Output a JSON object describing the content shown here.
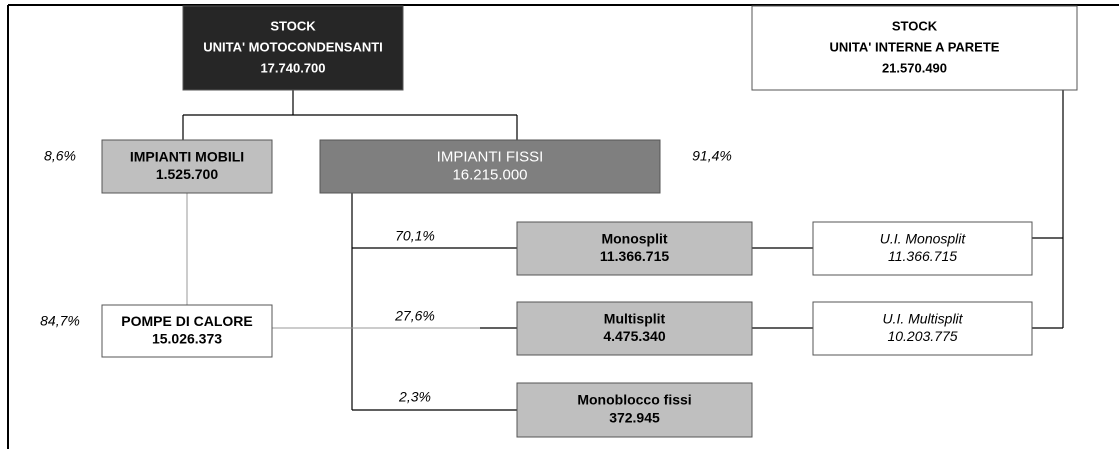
{
  "nodes": [
    {
      "lines": [
        "STOCK",
        "UNITA' MOTOCONDENSANTI",
        "17.740.700"
      ]
    },
    {
      "lines": [
        "STOCK",
        "UNITA' INTERNE A PARETE",
        "21.570.490"
      ]
    },
    {
      "lines": [
        "IMPIANTI MOBILI",
        "1.525.700"
      ]
    },
    {
      "lines": [
        "IMPIANTI FISSI",
        "16.215.000"
      ]
    },
    {
      "lines": [
        "POMPE DI CALORE",
        "15.026.373"
      ]
    },
    {
      "lines": [
        "Monosplit",
        "11.366.715"
      ]
    },
    {
      "lines": [
        "Multisplit",
        "4.475.340"
      ]
    },
    {
      "lines": [
        "Monoblocco fissi",
        "372.945"
      ]
    },
    {
      "lines": [
        "U.I. Monosplit",
        "11.366.715"
      ]
    },
    {
      "lines": [
        "U.I. Multisplit",
        "10.203.775"
      ]
    }
  ],
  "percentages": [
    "8,6%",
    "91,4%",
    "70,1%",
    "27,6%",
    "2,3%",
    "84,7%"
  ]
}
